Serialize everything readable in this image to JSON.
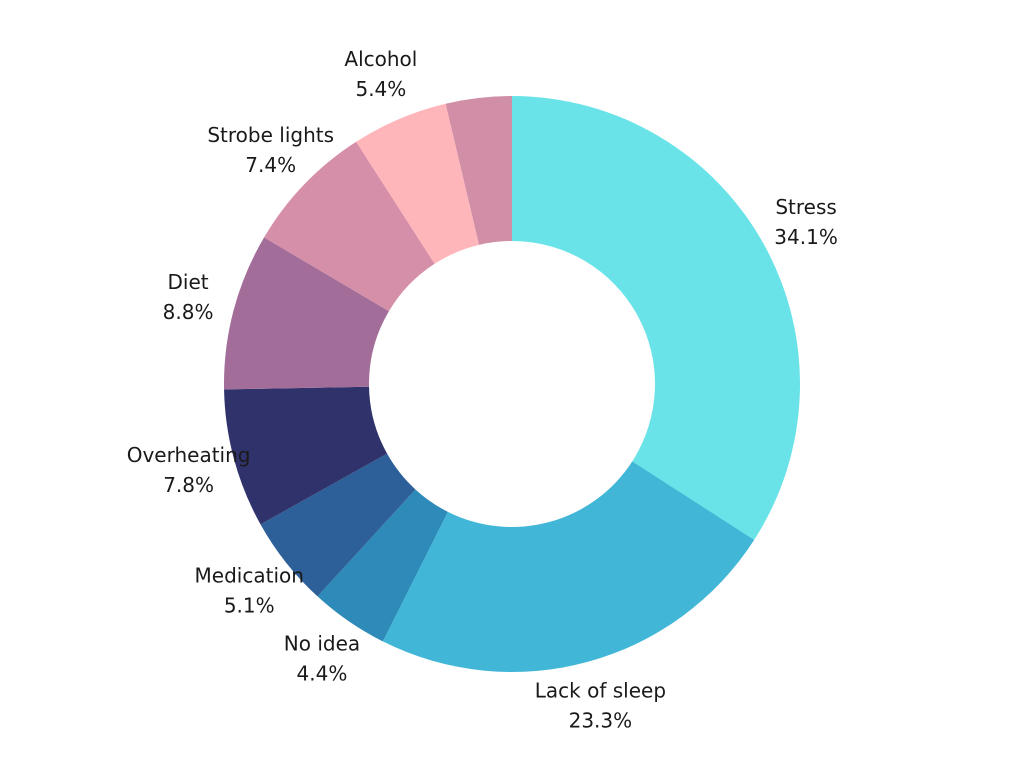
{
  "chart_data": {
    "type": "donut",
    "categories": [
      "Stress",
      "Lack of sleep",
      "No idea",
      "Medication",
      "Overheating",
      "Diet",
      "Strobe lights",
      "Alcohol",
      null
    ],
    "values": [
      34.1,
      23.3,
      4.4,
      5.1,
      7.8,
      8.8,
      7.4,
      5.4,
      3.7
    ],
    "value_labels": [
      "34.1%",
      "23.3%",
      "4.4%",
      "5.1%",
      "7.8%",
      "8.8%",
      "7.4%",
      "5.4%",
      null
    ],
    "colors": [
      "#6ae3e8",
      "#42b6d6",
      "#2e8ab8",
      "#2d5f98",
      "#30336b",
      "#a26d99",
      "#d58fa8",
      "#ffb6ba",
      "#d08fa6"
    ]
  }
}
